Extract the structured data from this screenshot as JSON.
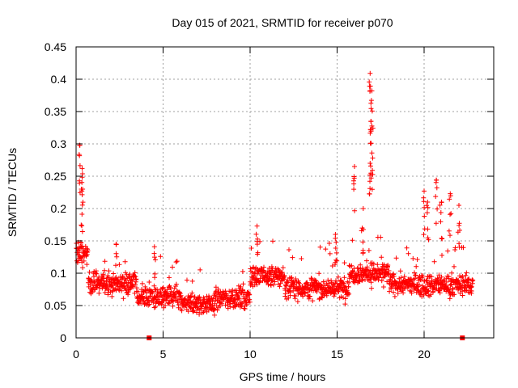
{
  "chart_data": {
    "type": "scatter",
    "title": "Day 015 of 2021, SRMTID for receiver p070",
    "xlabel": "GPS time / hours",
    "ylabel": "SRMTID / TECUs",
    "xlim": [
      0,
      24
    ],
    "ylim": [
      0,
      0.45
    ],
    "xticks": [
      0,
      5,
      10,
      15,
      20
    ],
    "xtick_labels": [
      "0",
      "5",
      "10",
      "15",
      "20"
    ],
    "yticks": [
      0,
      0.05,
      0.1,
      0.15,
      0.2,
      0.25,
      0.3,
      0.35,
      0.4,
      0.45
    ],
    "ytick_labels": [
      "0",
      "0.05",
      "0.1",
      "0.15",
      "0.2",
      "0.25",
      "0.3",
      "0.35",
      "0.4",
      "0.45"
    ],
    "grid": true,
    "marker": "+",
    "series_color": "#ff0000",
    "data_span_hours": [
      0,
      22.8
    ],
    "baseline_value_approx": 0.07,
    "peaks": [
      {
        "x": 0.2,
        "y": 0.298
      },
      {
        "x": 0.35,
        "y": 0.262
      },
      {
        "x": 0.3,
        "y": 0.23
      },
      {
        "x": 2.3,
        "y": 0.145
      },
      {
        "x": 4.5,
        "y": 0.141
      },
      {
        "x": 10.4,
        "y": 0.173
      },
      {
        "x": 14.9,
        "y": 0.16
      },
      {
        "x": 16.0,
        "y": 0.265
      },
      {
        "x": 16.5,
        "y": 0.2
      },
      {
        "x": 16.9,
        "y": 0.409
      },
      {
        "x": 17.0,
        "y": 0.382
      },
      {
        "x": 16.95,
        "y": 0.335
      },
      {
        "x": 17.0,
        "y": 0.286
      },
      {
        "x": 16.9,
        "y": 0.27
      },
      {
        "x": 20.0,
        "y": 0.227
      },
      {
        "x": 20.2,
        "y": 0.21
      },
      {
        "x": 20.7,
        "y": 0.244
      },
      {
        "x": 21.0,
        "y": 0.21
      },
      {
        "x": 21.5,
        "y": 0.223
      },
      {
        "x": 22.0,
        "y": 0.205
      }
    ],
    "baseline_markers": [
      {
        "x": 4.2,
        "y": 0
      },
      {
        "x": 22.2,
        "y": 0
      }
    ]
  }
}
